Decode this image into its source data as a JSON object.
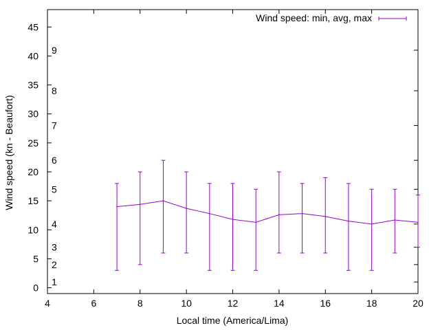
{
  "chart_data": {
    "type": "line",
    "title": "",
    "xlabel": "Local time (America/Lima)",
    "ylabel": "Wind speed (kn - Beaufort)",
    "xlim": [
      4,
      20
    ],
    "ylim": [
      -1,
      48
    ],
    "x_ticks": [
      4,
      6,
      8,
      10,
      12,
      14,
      16,
      18,
      20
    ],
    "y_ticks": [
      0,
      5,
      10,
      15,
      20,
      25,
      30,
      35,
      40,
      45
    ],
    "beaufort_labels": [
      {
        "label": "1",
        "value": 1.0
      },
      {
        "label": "2",
        "value": 4.0
      },
      {
        "label": "3",
        "value": 7.0
      },
      {
        "label": "4",
        "value": 11.0
      },
      {
        "label": "5",
        "value": 17.0
      },
      {
        "label": "6",
        "value": 22.0
      },
      {
        "label": "7",
        "value": 28.0
      },
      {
        "label": "8",
        "value": 34.0
      },
      {
        "label": "9",
        "value": 41.0
      }
    ],
    "grid": false,
    "legend_position": "top-right",
    "series": [
      {
        "name": "Wind speed: min, avg, max",
        "color": "#9400d3",
        "points": [
          {
            "x": 7,
            "min": 3,
            "avg": 14.0,
            "max": 18
          },
          {
            "x": 8,
            "min": 4,
            "avg": 14.4,
            "max": 20
          },
          {
            "x": 9,
            "min": 6,
            "avg": 15.0,
            "max": 22
          },
          {
            "x": 10,
            "min": 6,
            "avg": 13.7,
            "max": 20
          },
          {
            "x": 11,
            "min": 3,
            "avg": 12.8,
            "max": 18
          },
          {
            "x": 12,
            "min": 3,
            "avg": 11.8,
            "max": 18
          },
          {
            "x": 13,
            "min": 3,
            "avg": 11.3,
            "max": 17
          },
          {
            "x": 14,
            "min": 6,
            "avg": 12.6,
            "max": 20
          },
          {
            "x": 15,
            "min": 6,
            "avg": 12.8,
            "max": 18
          },
          {
            "x": 16,
            "min": 6,
            "avg": 12.3,
            "max": 19
          },
          {
            "x": 17,
            "min": 3,
            "avg": 11.5,
            "max": 18
          },
          {
            "x": 18,
            "min": 3,
            "avg": 11.0,
            "max": 17
          },
          {
            "x": 19,
            "min": 6,
            "avg": 11.7,
            "max": 17
          },
          {
            "x": 20,
            "min": 7,
            "avg": 11.3,
            "max": 16
          }
        ]
      }
    ]
  }
}
